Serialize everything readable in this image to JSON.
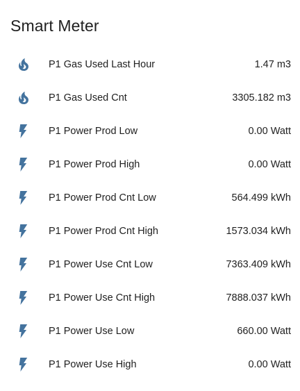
{
  "card": {
    "title": "Smart Meter"
  },
  "colors": {
    "icon": "#44739e",
    "text": "#212121",
    "background": "#ffffff"
  },
  "entities": [
    {
      "icon": "fire-icon",
      "name": "P1 Gas Used Last Hour",
      "state": "1.47 m3"
    },
    {
      "icon": "fire-icon",
      "name": "P1 Gas Used Cnt",
      "state": "3305.182 m3"
    },
    {
      "icon": "flash-icon",
      "name": "P1 Power Prod Low",
      "state": "0.00 Watt"
    },
    {
      "icon": "flash-icon",
      "name": "P1 Power Prod High",
      "state": "0.00 Watt"
    },
    {
      "icon": "flash-icon",
      "name": "P1 Power Prod Cnt Low",
      "state": "564.499 kWh"
    },
    {
      "icon": "flash-icon",
      "name": "P1 Power Prod Cnt High",
      "state": "1573.034 kWh"
    },
    {
      "icon": "flash-icon",
      "name": "P1 Power Use Cnt Low",
      "state": "7363.409 kWh"
    },
    {
      "icon": "flash-icon",
      "name": "P1 Power Use Cnt High",
      "state": "7888.037 kWh"
    },
    {
      "icon": "flash-icon",
      "name": "P1 Power Use Low",
      "state": "660.00 Watt"
    },
    {
      "icon": "flash-icon",
      "name": "P1 Power Use High",
      "state": "0.00 Watt"
    }
  ]
}
